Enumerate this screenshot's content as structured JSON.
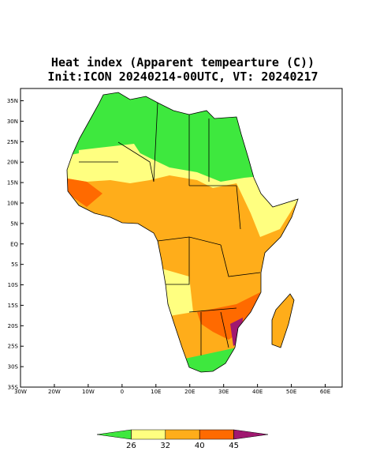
{
  "map": {
    "title": "Heat index (Apparent tempearture (C))",
    "subtitle": "Init:ICON 20240214-00UTC, VT: 20240217",
    "xlim": [
      -30,
      65
    ],
    "ylim": [
      -35,
      38
    ],
    "xticks": [
      {
        "value": -30,
        "label": "30W"
      },
      {
        "value": -20,
        "label": "20W"
      },
      {
        "value": -10,
        "label": "10W"
      },
      0,
      {
        "value": 10,
        "label": "10E"
      },
      {
        "value": 20,
        "label": "20E"
      },
      {
        "value": 30,
        "label": "30E"
      },
      {
        "value": 40,
        "label": "40E"
      },
      {
        "value": 50,
        "label": "50E"
      },
      {
        "value": 60,
        "label": "60E"
      }
    ],
    "yticks": [
      {
        "value": 35,
        "label": "35N"
      },
      {
        "value": 30,
        "label": "30N"
      },
      {
        "value": 25,
        "label": "25N"
      },
      {
        "value": 20,
        "label": "20N"
      },
      {
        "value": 15,
        "label": "15N"
      },
      {
        "value": 10,
        "label": "10N"
      },
      {
        "value": 5,
        "label": "5N"
      },
      {
        "value": 0,
        "label": "EQ"
      },
      {
        "value": -5,
        "label": "5S"
      },
      {
        "value": -10,
        "label": "10S"
      },
      {
        "value": -15,
        "label": "15S"
      },
      {
        "value": -20,
        "label": "20S"
      },
      {
        "value": -25,
        "label": "25S"
      },
      {
        "value": -30,
        "label": "30S"
      },
      {
        "value": -35,
        "label": "35S"
      }
    ],
    "colorbar": {
      "ticks": [
        26,
        32,
        40,
        45
      ],
      "colors": [
        "#3ee83e",
        "#ffff80",
        "#ffad1a",
        "#ff6a00",
        "#a01870"
      ]
    }
  }
}
